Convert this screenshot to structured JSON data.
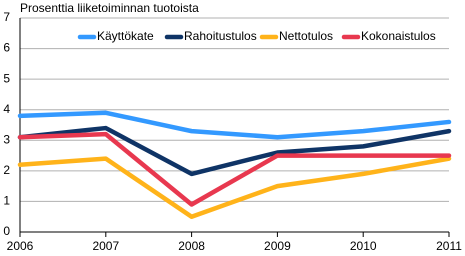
{
  "chart_data": {
    "type": "line",
    "y_label": "Prosenttia liiketoiminnan tuotoista",
    "x": [
      2006,
      2007,
      2008,
      2009,
      2010,
      2011
    ],
    "xlim": [
      2006,
      2011
    ],
    "xticks": [
      2006,
      2007,
      2008,
      2009,
      2010,
      2011
    ],
    "ylim": [
      0,
      7
    ],
    "yticks": [
      0,
      1,
      2,
      3,
      4,
      5,
      6,
      7
    ],
    "grid": true,
    "legend": "top",
    "series": [
      {
        "name": "Käyttökate",
        "color": "#3399ff",
        "values": [
          3.8,
          3.9,
          3.3,
          3.1,
          3.3,
          3.6
        ]
      },
      {
        "name": "Rahoitustulos",
        "color": "#0f3466",
        "values": [
          3.1,
          3.4,
          1.9,
          2.6,
          2.8,
          3.3
        ]
      },
      {
        "name": "Nettotulos",
        "color": "#ffb31a",
        "values": [
          2.2,
          2.4,
          0.5,
          1.5,
          1.9,
          2.4
        ]
      },
      {
        "name": "Kokonaistulos",
        "color": "#e8384f",
        "values": [
          3.1,
          3.2,
          0.9,
          2.5,
          2.5,
          2.5
        ]
      }
    ]
  }
}
